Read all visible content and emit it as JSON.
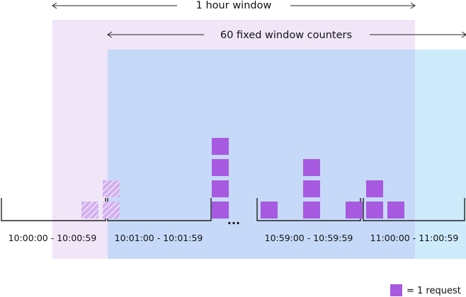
{
  "hour_window": {
    "label": "1 hour window",
    "color": "#f0e6f8"
  },
  "counters_window": {
    "label": "60 fixed window counters",
    "color": "#c6d9f8"
  },
  "next_window": {
    "color": "#cdebfb"
  },
  "ellipsis": "...",
  "buckets": [
    {
      "label": "10:00:00 - 10:00:59",
      "style": "faded",
      "columns": [
        0,
        1,
        2
      ]
    },
    {
      "label": "10:01:00 - 10:01:59",
      "style": "solid",
      "columns": [
        0,
        0,
        4
      ]
    },
    {
      "label": "10:59:00 - 10:59:59",
      "style": "solid",
      "columns": [
        1,
        0,
        3,
        0,
        1
      ]
    },
    {
      "label": "11:00:00 - 11:00:59",
      "style": "solid",
      "columns": [
        2,
        1
      ]
    }
  ],
  "legend": {
    "label": "= 1 request",
    "icon": "request-square-icon"
  },
  "colors": {
    "request": "#a759e0",
    "request_faded": "#d3b0f0",
    "hatch": "#ffffff",
    "line": "#222222"
  }
}
